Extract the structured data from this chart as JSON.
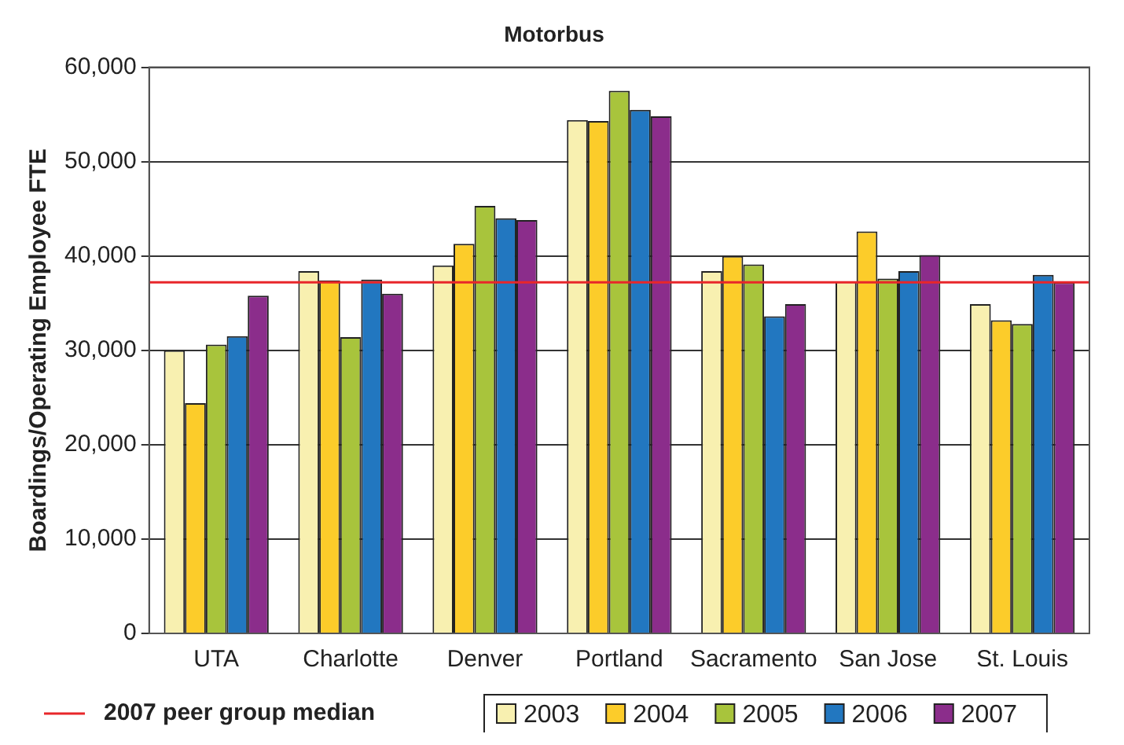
{
  "chart_data": {
    "type": "bar",
    "title": "Motorbus",
    "ylabel": "Boardings/Operating Employee FTE",
    "categories": [
      "UTA",
      "Charlotte",
      "Denver",
      "Portland",
      "Sacramento",
      "San Jose",
      "St. Louis"
    ],
    "series": [
      {
        "name": "2003",
        "color": "#f8f0b0",
        "values": [
          30000,
          38400,
          39000,
          54400,
          38400,
          37300,
          34900
        ]
      },
      {
        "name": "2004",
        "color": "#fccc2a",
        "values": [
          24400,
          37400,
          41300,
          54300,
          40000,
          42600,
          33200
        ]
      },
      {
        "name": "2005",
        "color": "#a8c43c",
        "values": [
          30600,
          31400,
          45300,
          57500,
          39100,
          37600,
          32800
        ]
      },
      {
        "name": "2006",
        "color": "#2277c0",
        "values": [
          31500,
          37500,
          44000,
          55500,
          33600,
          38400,
          38000
        ]
      },
      {
        "name": "2007",
        "color": "#8b2d8b",
        "values": [
          35800,
          36000,
          43800,
          54800,
          34900,
          40100,
          37200
        ]
      }
    ],
    "ylim": [
      0,
      60000
    ],
    "yticks": [
      {
        "value": 0,
        "label": "0"
      },
      {
        "value": 10000,
        "label": "10,000"
      },
      {
        "value": 20000,
        "label": "20,000"
      },
      {
        "value": 30000,
        "label": "30,000"
      },
      {
        "value": 40000,
        "label": "40,000"
      },
      {
        "value": 50000,
        "label": "50,000"
      },
      {
        "value": 60000,
        "label": "60,000"
      }
    ],
    "grid": "y",
    "legend": "bottom",
    "ref_lines": [
      {
        "axis": "y",
        "value": 37200,
        "label": "2007 peer group median",
        "color": "#e8262a"
      }
    ]
  }
}
